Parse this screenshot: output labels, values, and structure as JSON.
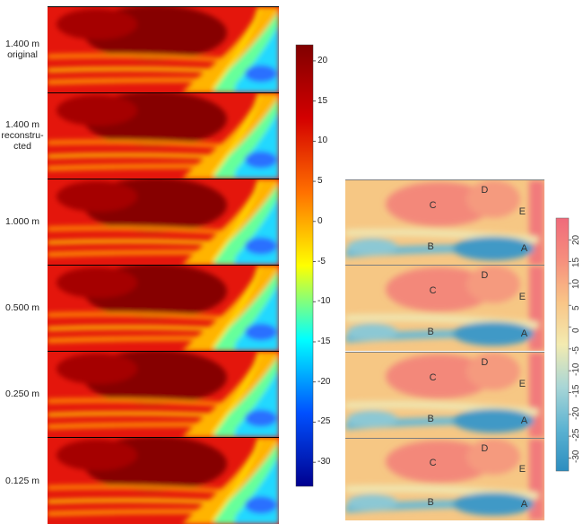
{
  "chart_data": [
    {
      "type": "heatmap",
      "title": "",
      "xlabel": "",
      "ylabel": "",
      "rows": [
        {
          "label_lines": [
            "1.400 m",
            "original"
          ]
        },
        {
          "label_lines": [
            "1.400 m",
            "reconstru-",
            "cted"
          ]
        },
        {
          "label_lines": [
            "1.000 m"
          ]
        },
        {
          "label_lines": [
            "0.500 m"
          ]
        },
        {
          "label_lines": [
            "0.250 m"
          ]
        },
        {
          "label_lines": [
            "0.125 m"
          ]
        }
      ],
      "colorbar": {
        "range": [
          -33,
          22
        ],
        "ticks": [
          20,
          15,
          10,
          5,
          0,
          -5,
          -10,
          -15,
          -20,
          -25,
          -30
        ],
        "colormap": "jet",
        "colors": [
          "#00008f",
          "#0050ff",
          "#00ffff",
          "#ffff00",
          "#ff7000",
          "#d40000",
          "#800000"
        ]
      }
    },
    {
      "type": "heatmap",
      "title": "",
      "xlabel": "",
      "ylabel": "",
      "rows": [
        {
          "features": [
            "D",
            "C",
            "E",
            "B",
            "A"
          ]
        },
        {
          "features": [
            "D",
            "C",
            "E",
            "B",
            "A"
          ]
        },
        {
          "features": [
            "D",
            "C",
            "E",
            "B",
            "A"
          ]
        },
        {
          "features": [
            "D",
            "C",
            "E",
            "B",
            "A"
          ]
        }
      ],
      "colorbar": {
        "range": [
          -33,
          25
        ],
        "ticks": [
          20,
          15,
          10,
          5,
          0,
          -5,
          -10,
          -15,
          -20,
          -25,
          -30
        ],
        "colormap": "pastel",
        "colors": [
          "#2d8dbf",
          "#5cb3d2",
          "#a9d6d6",
          "#f3ebb0",
          "#f9c587",
          "#f68f7d",
          "#f06a7b"
        ]
      }
    }
  ]
}
